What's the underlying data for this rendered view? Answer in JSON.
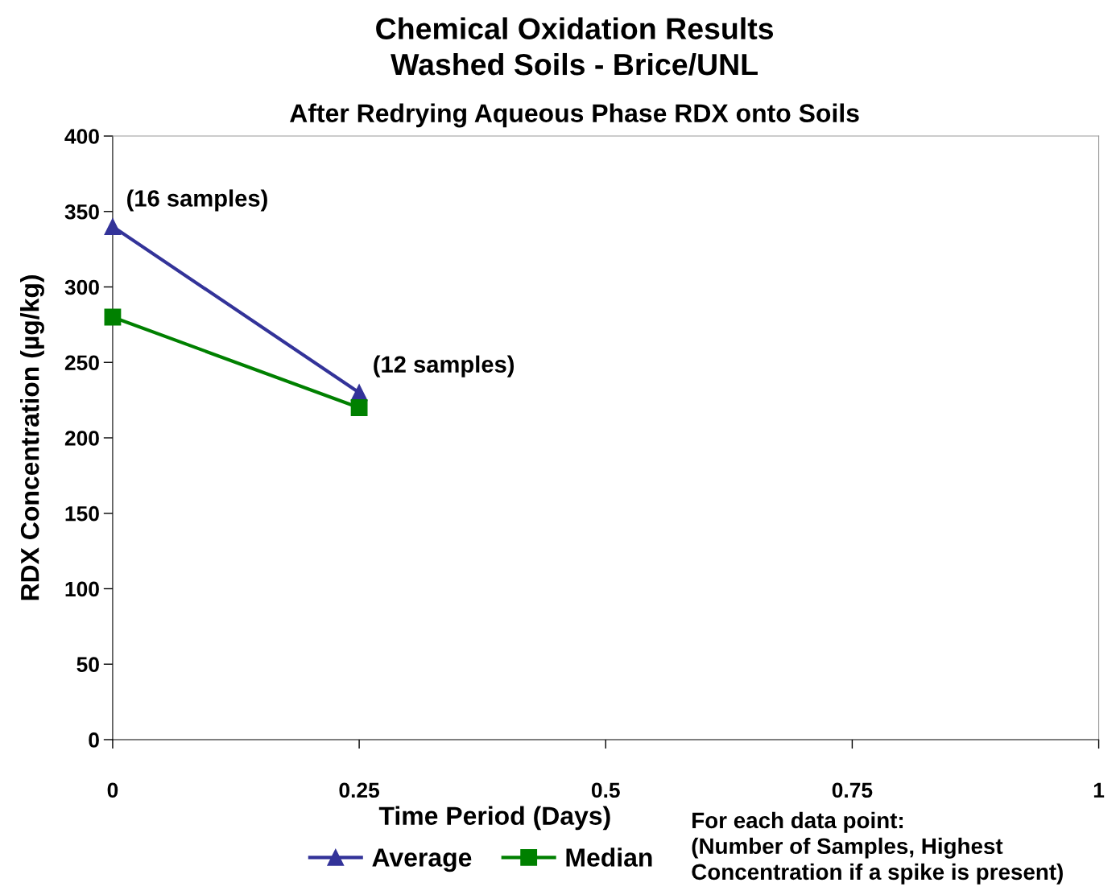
{
  "chart_data": {
    "type": "line",
    "title": "Chemical Oxidation Results\nWashed Soils - Brice/UNL",
    "subtitle": "After Redrying Aqueous Phase RDX onto Soils",
    "xlabel": "Time Period (Days)",
    "ylabel": "RDX Concentration (µg/kg)",
    "x": [
      0,
      0.25
    ],
    "series": [
      {
        "name": "Average",
        "color": "#333399",
        "values": [
          340,
          230
        ],
        "marker": "triangle"
      },
      {
        "name": "Median",
        "color": "#008000",
        "values": [
          280,
          220
        ],
        "marker": "square"
      }
    ],
    "xlim": [
      0,
      1
    ],
    "xticks": [
      0,
      0.25,
      0.5,
      0.75,
      1
    ],
    "ylim": [
      0,
      400
    ],
    "yticks": [
      0,
      50,
      100,
      150,
      200,
      250,
      300,
      350,
      400
    ],
    "grid": false,
    "legend": "bottom",
    "line_style": "solid",
    "annotations": [
      {
        "text": "(16 samples)",
        "x": 0,
        "y": 340
      },
      {
        "text": "(12 samples)",
        "x": 0.25,
        "y": 230
      },
      "For each data point:\n(Number of Samples, Highest\nConcentration if a spike is present)"
    ]
  }
}
